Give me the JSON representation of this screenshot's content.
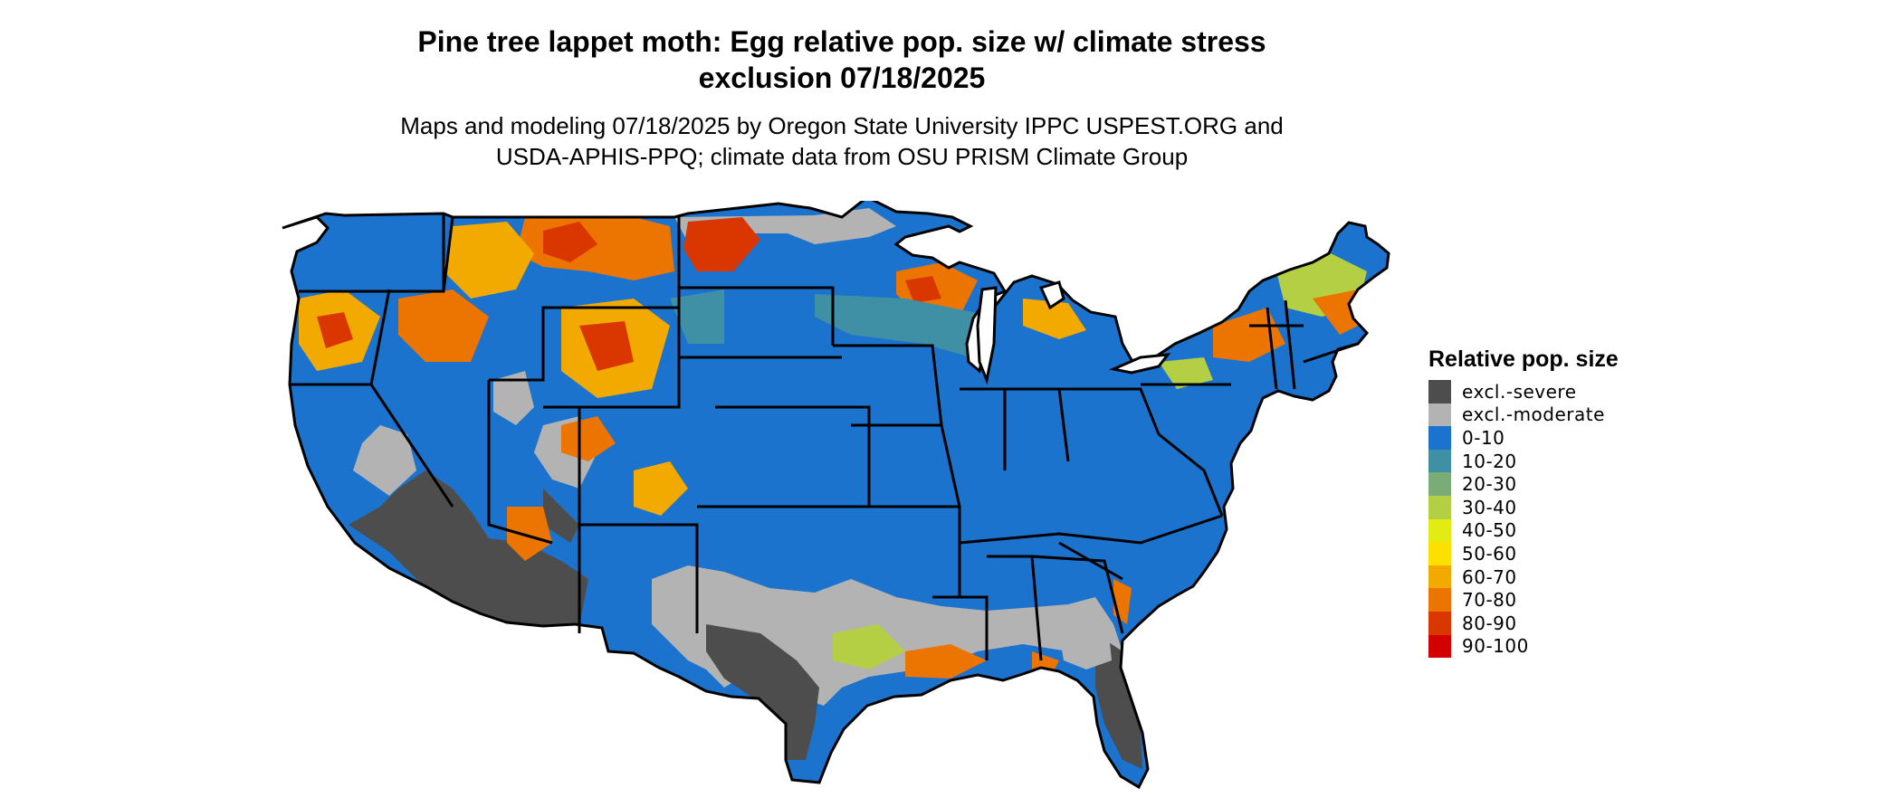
{
  "title_line1": "Pine tree lappet moth: Egg relative pop. size w/ climate stress",
  "title_line2": "exclusion 07/18/2025",
  "subtitle_line1": "Maps and modeling 07/18/2025 by Oregon State University IPPC USPEST.ORG and",
  "subtitle_line2": "USDA-APHIS-PPQ; climate data from OSU PRISM Climate Group",
  "legend": {
    "title": "Relative pop. size",
    "items": [
      {
        "label": "excl.-severe",
        "color": "#4d4d4d"
      },
      {
        "label": "excl.-moderate",
        "color": "#b3b3b3"
      },
      {
        "label": "0-10",
        "color": "#1b73ce"
      },
      {
        "label": "10-20",
        "color": "#3f8fa5"
      },
      {
        "label": "20-30",
        "color": "#7aac78"
      },
      {
        "label": "30-40",
        "color": "#b5cf44"
      },
      {
        "label": "40-50",
        "color": "#e3eb14"
      },
      {
        "label": "50-60",
        "color": "#fbe000"
      },
      {
        "label": "60-70",
        "color": "#f3aa00"
      },
      {
        "label": "70-80",
        "color": "#ec7400"
      },
      {
        "label": "80-90",
        "color": "#da3600"
      },
      {
        "label": "90-100",
        "color": "#d40000"
      }
    ]
  }
}
